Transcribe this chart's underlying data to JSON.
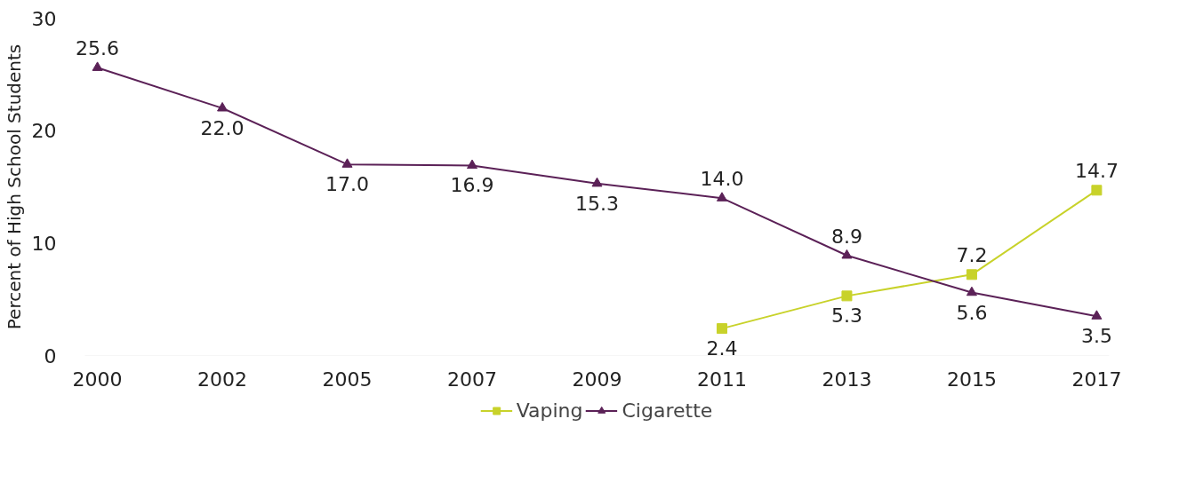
{
  "chart_data": {
    "type": "line",
    "ylabel": "Percent of High School Students",
    "categories": [
      "2000",
      "2002",
      "2005",
      "2007",
      "2009",
      "2011",
      "2013",
      "2015",
      "2017"
    ],
    "series": [
      {
        "name": "Vaping",
        "color": "#c8d22a",
        "marker": "square",
        "values": [
          null,
          null,
          null,
          null,
          null,
          2.4,
          5.3,
          7.2,
          14.7
        ],
        "value_labels": [
          null,
          null,
          null,
          null,
          null,
          "2.4",
          "5.3",
          "7.2",
          "14.7"
        ]
      },
      {
        "name": "Cigarette",
        "color": "#5b2157",
        "marker": "triangle",
        "values": [
          25.6,
          22.0,
          17.0,
          16.9,
          15.3,
          14.0,
          8.9,
          5.6,
          3.5
        ],
        "value_labels": [
          "25.6",
          "22.0",
          "17.0",
          "16.9",
          "15.3",
          "14.0",
          "8.9",
          "5.6",
          "3.5"
        ]
      }
    ],
    "ylim": [
      0,
      30
    ],
    "yticks": [
      0,
      10,
      20,
      30
    ],
    "legend": "bottom",
    "grid": false
  }
}
